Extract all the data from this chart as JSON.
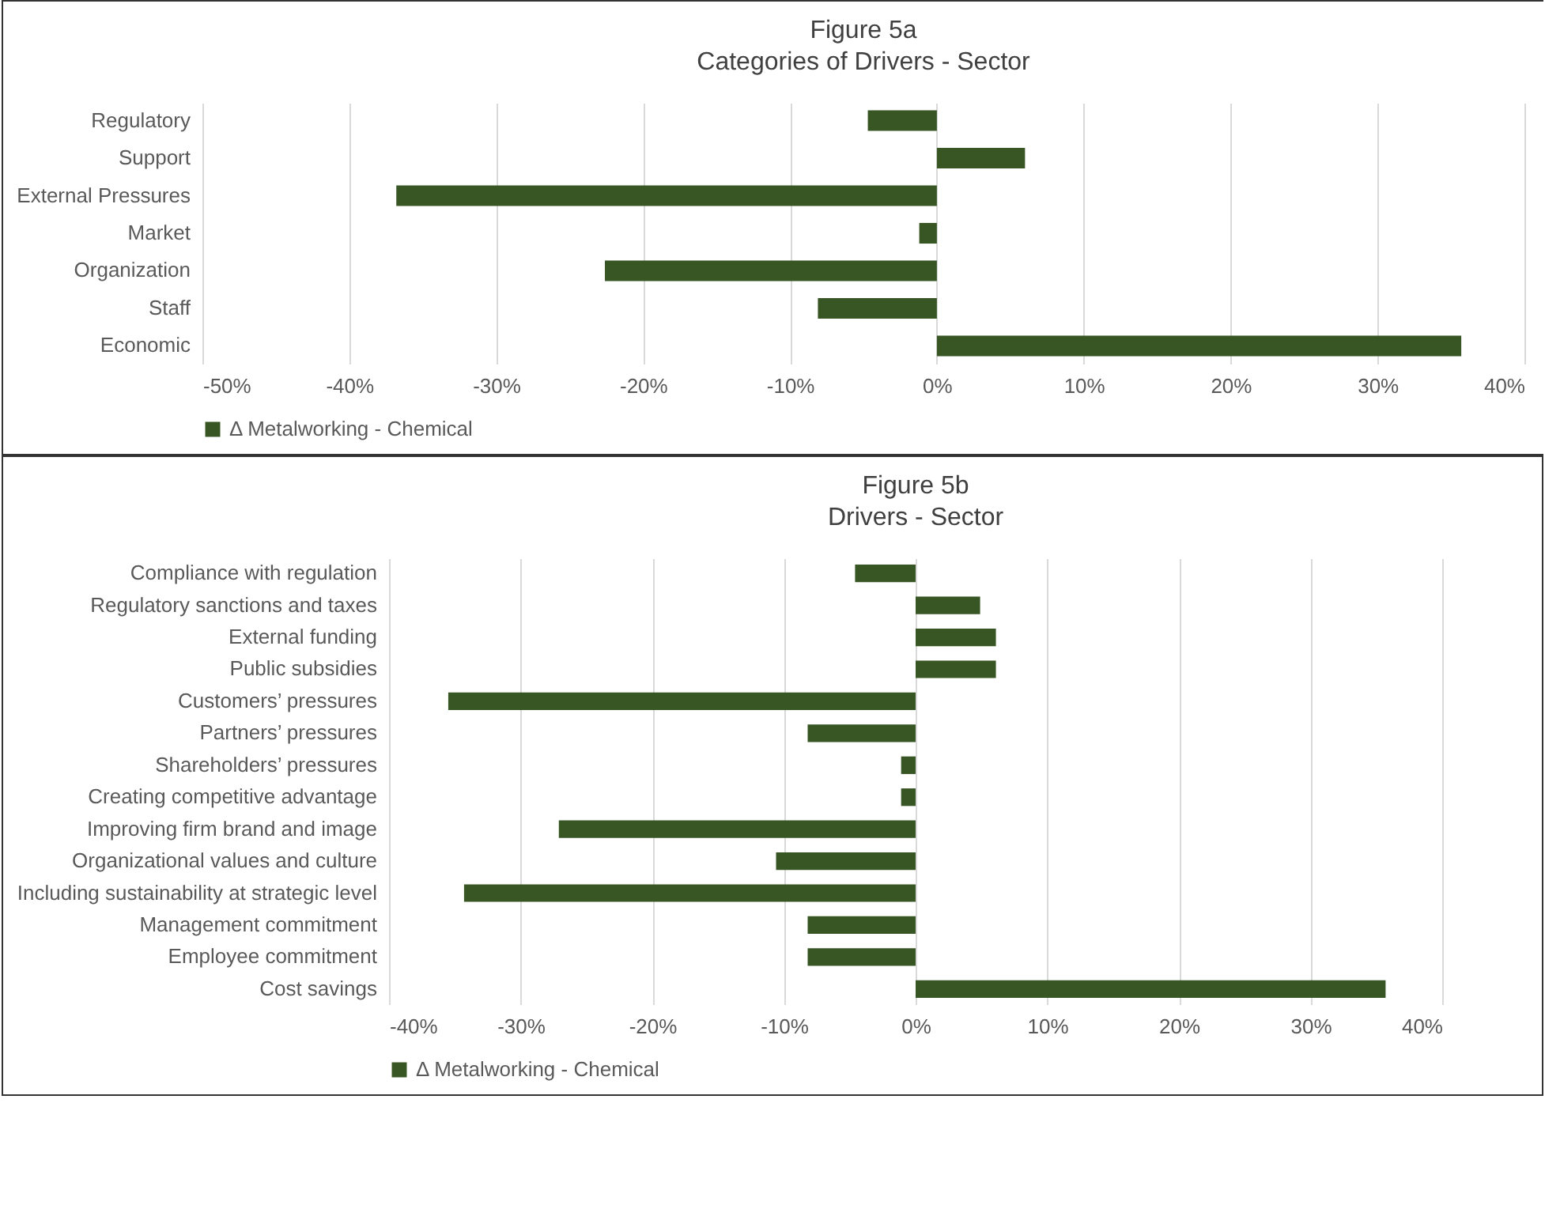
{
  "chart_data": [
    {
      "type": "bar",
      "orientation": "horizontal",
      "title": "Figure 5a",
      "subtitle": "Categories of Drivers - Sector",
      "categories": [
        "Regulatory",
        "Support",
        "External Pressures",
        "Market",
        "Organization",
        "Staff",
        "Economic"
      ],
      "series": [
        {
          "name": "Δ Metalworking - Chemical",
          "color": "#375623",
          "values": [
            -4.7,
            6.0,
            -36.8,
            -1.2,
            -22.6,
            -8.1,
            35.7
          ]
        }
      ],
      "xlim": [
        -50,
        40
      ],
      "xticks": [
        {
          "value": -50,
          "label": "-50%"
        },
        {
          "value": -40,
          "label": "-40%"
        },
        {
          "value": -30,
          "label": "-30%"
        },
        {
          "value": -20,
          "label": "-20%"
        },
        {
          "value": -10,
          "label": "-10%"
        },
        {
          "value": 0,
          "label": "0%"
        },
        {
          "value": 10,
          "label": "10%"
        },
        {
          "value": 20,
          "label": "20%"
        },
        {
          "value": 30,
          "label": "30%"
        },
        {
          "value": 40,
          "label": "40%"
        }
      ],
      "grid": "x",
      "legend": "bottom"
    },
    {
      "type": "bar",
      "orientation": "horizontal",
      "title": "Figure 5b",
      "subtitle": "Drivers - Sector",
      "categories": [
        "Compliance with regulation",
        "Regulatory sanctions and taxes",
        "External funding",
        "Public subsidies",
        "Customers’ pressures",
        "Partners’ pressures",
        "Shareholders’ pressures",
        "Creating competitive advantage",
        "Improving firm brand and image",
        "Organizational values and culture",
        "Including sustainability at strategic level",
        "Management commitment",
        "Employee commitment",
        "Cost savings"
      ],
      "series": [
        {
          "name": "Δ Metalworking - Chemical",
          "color": "#375623",
          "values": [
            -4.6,
            4.9,
            6.1,
            6.1,
            -35.5,
            -8.2,
            -1.1,
            -1.1,
            -27.1,
            -10.6,
            -34.3,
            -8.2,
            -8.2,
            35.7
          ]
        }
      ],
      "xlim": [
        -40,
        40
      ],
      "xticks": [
        {
          "value": -40,
          "label": "-40%"
        },
        {
          "value": -30,
          "label": "-30%"
        },
        {
          "value": -20,
          "label": "-20%"
        },
        {
          "value": -10,
          "label": "-10%"
        },
        {
          "value": 0,
          "label": "0%"
        },
        {
          "value": 10,
          "label": "10%"
        },
        {
          "value": 20,
          "label": "20%"
        },
        {
          "value": 30,
          "label": "30%"
        },
        {
          "value": 40,
          "label": "40%"
        }
      ],
      "grid": "x",
      "legend": "bottom"
    }
  ]
}
